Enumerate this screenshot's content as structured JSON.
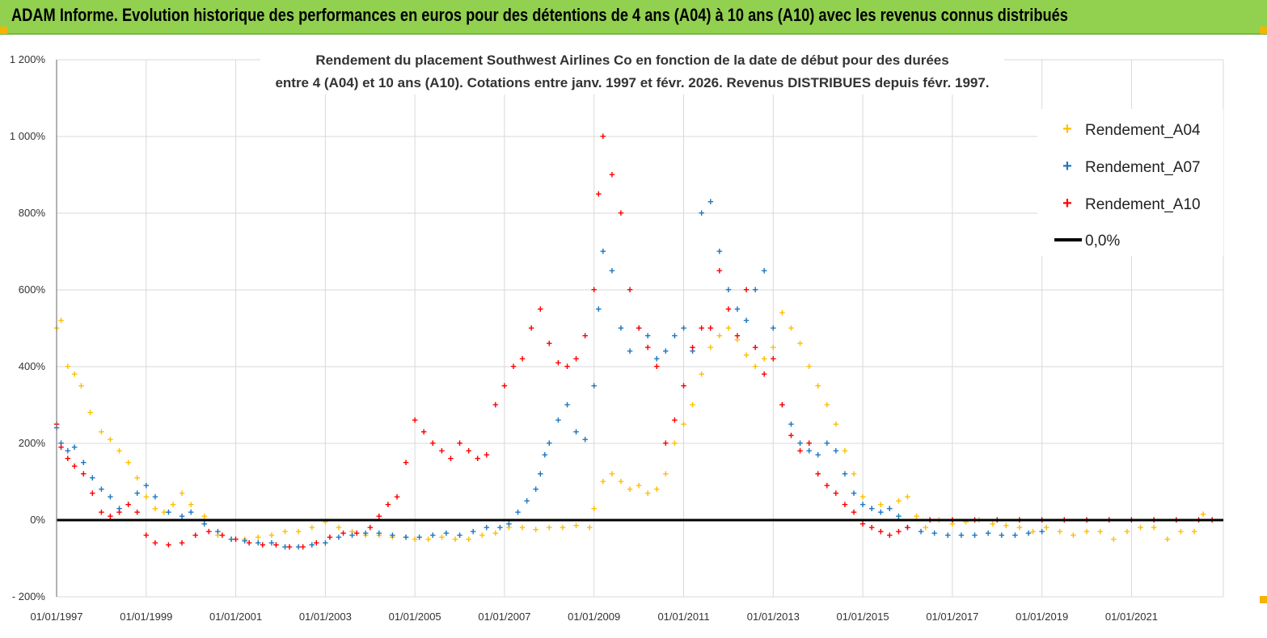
{
  "header": {
    "title": "ADAM Informe. Evolution historique des performances en euros pour des détentions de 4 ans (A04) à 10 ans (A10) avec les revenus connus distribués"
  },
  "colors": {
    "banner": "#92d050",
    "a04": "#ffc000",
    "a07": "#1f77c0",
    "a10": "#ff0000",
    "zero_line": "#000000",
    "grid": "#d9d9d9"
  },
  "chart_data": {
    "type": "scatter",
    "title": "Rendement du placement Southwest Airlines Co en fonction de la date de début pour des durées",
    "subtitle": "entre 4 (A04) et 10 ans (A10). Cotations entre janv. 1997 et févr. 2026. Revenus DISTRIBUES depuis févr. 1997.",
    "xlabel": "",
    "ylabel": "",
    "x_range": [
      "1997-01-01",
      "2023-01-20"
    ],
    "y_range": [
      -200,
      1200
    ],
    "y_ticks": [
      "1 200%",
      "1 000%",
      "800%",
      "600%",
      "400%",
      "200%",
      "0%",
      "- 200%"
    ],
    "y_tick_values": [
      1200,
      1000,
      800,
      600,
      400,
      200,
      0,
      -200
    ],
    "x_ticks": [
      "01/01/1997",
      "01/01/1999",
      "01/01/2001",
      "01/01/2003",
      "01/01/2005",
      "01/01/2007",
      "01/01/2009",
      "01/01/2011",
      "01/01/2013",
      "01/01/2015",
      "01/01/2017",
      "01/01/2019",
      "01/01/2021"
    ],
    "x_tick_years": [
      1997,
      1999,
      2001,
      2003,
      2005,
      2007,
      2009,
      2011,
      2013,
      2015,
      2017,
      2019,
      2021
    ],
    "grid": true,
    "legend_position": "top-right",
    "series": [
      {
        "name": "Rendement_A04",
        "marker": "plus",
        "x": [
          1997.0,
          1997.1,
          1997.25,
          1997.4,
          1997.55,
          1997.75,
          1998.0,
          1998.2,
          1998.4,
          1998.6,
          1998.8,
          1999.0,
          1999.2,
          1999.4,
          1999.6,
          1999.8,
          2000.0,
          2000.3,
          2000.6,
          2000.9,
          2001.2,
          2001.5,
          2001.8,
          2002.1,
          2002.4,
          2002.7,
          2003.0,
          2003.3,
          2003.6,
          2003.9,
          2004.2,
          2004.5,
          2004.8,
          2005.0,
          2005.3,
          2005.6,
          2005.9,
          2006.2,
          2006.5,
          2006.8,
          2007.1,
          2007.4,
          2007.7,
          2008.0,
          2008.3,
          2008.6,
          2008.9,
          2009.0,
          2009.2,
          2009.4,
          2009.6,
          2009.8,
          2010.0,
          2010.2,
          2010.4,
          2010.6,
          2010.8,
          2011.0,
          2011.2,
          2011.4,
          2011.6,
          2011.8,
          2012.0,
          2012.2,
          2012.4,
          2012.6,
          2012.8,
          2013.0,
          2013.2,
          2013.4,
          2013.6,
          2013.8,
          2014.0,
          2014.2,
          2014.4,
          2014.6,
          2014.8,
          2015.0,
          2015.2,
          2015.4,
          2015.6,
          2015.8,
          2016.0,
          2016.2,
          2016.4,
          2016.7,
          2017.0,
          2017.3,
          2017.6,
          2017.9,
          2018.2,
          2018.5,
          2018.8,
          2019.1,
          2019.4,
          2019.7,
          2020.0,
          2020.3,
          2020.6,
          2020.9,
          2021.2,
          2021.5,
          2021.8,
          2022.1,
          2022.4,
          2022.6
        ],
        "y": [
          500,
          520,
          400,
          380,
          350,
          280,
          230,
          210,
          180,
          150,
          110,
          60,
          30,
          20,
          40,
          70,
          40,
          10,
          -40,
          -50,
          -50,
          -45,
          -40,
          -30,
          -30,
          -20,
          -5,
          -20,
          -30,
          -40,
          -40,
          -45,
          -45,
          -50,
          -50,
          -45,
          -50,
          -50,
          -40,
          -35,
          -20,
          -20,
          -25,
          -20,
          -20,
          -15,
          -20,
          30,
          100,
          120,
          100,
          80,
          90,
          70,
          80,
          120,
          200,
          250,
          300,
          380,
          450,
          480,
          500,
          470,
          430,
          400,
          420,
          450,
          540,
          500,
          460,
          400,
          350,
          300,
          250,
          180,
          120,
          60,
          30,
          40,
          30,
          50,
          60,
          10,
          -20,
          0,
          -10,
          -5,
          0,
          -10,
          -15,
          -20,
          -30,
          -20,
          -30,
          -40,
          -30,
          -30,
          -50,
          -30,
          -20,
          -20,
          -50,
          -30,
          -30,
          15
        ]
      },
      {
        "name": "Rendement_A07",
        "marker": "plus",
        "x": [
          1997.0,
          1997.1,
          1997.25,
          1997.4,
          1997.6,
          1997.8,
          1998.0,
          1998.2,
          1998.4,
          1998.6,
          1998.8,
          1999.0,
          1999.2,
          1999.5,
          1999.8,
          2000.0,
          2000.3,
          2000.6,
          2000.9,
          2001.2,
          2001.5,
          2001.8,
          2002.1,
          2002.4,
          2002.7,
          2003.0,
          2003.3,
          2003.6,
          2003.9,
          2004.2,
          2004.5,
          2004.8,
          2005.1,
          2005.4,
          2005.7,
          2006.0,
          2006.3,
          2006.6,
          2006.9,
          2007.1,
          2007.3,
          2007.5,
          2007.7,
          2007.8,
          2007.9,
          2008.0,
          2008.2,
          2008.4,
          2008.6,
          2008.8,
          2009.0,
          2009.1,
          2009.2,
          2009.4,
          2009.6,
          2009.8,
          2010.0,
          2010.2,
          2010.4,
          2010.6,
          2010.8,
          2011.0,
          2011.2,
          2011.4,
          2011.6,
          2011.8,
          2012.0,
          2012.2,
          2012.4,
          2012.6,
          2012.8,
          2013.0,
          2013.2,
          2013.4,
          2013.6,
          2013.8,
          2014.0,
          2014.2,
          2014.4,
          2014.6,
          2014.8,
          2015.0,
          2015.2,
          2015.4,
          2015.6,
          2015.8,
          2016.0,
          2016.3,
          2016.6,
          2016.9,
          2017.2,
          2017.5,
          2017.8,
          2018.1,
          2018.4,
          2018.7,
          2019.0
        ],
        "y": [
          240,
          200,
          180,
          190,
          150,
          110,
          80,
          60,
          30,
          40,
          70,
          90,
          60,
          20,
          10,
          20,
          -10,
          -30,
          -50,
          -55,
          -60,
          -60,
          -70,
          -70,
          -65,
          -60,
          -45,
          -40,
          -35,
          -35,
          -40,
          -45,
          -45,
          -40,
          -35,
          -40,
          -30,
          -20,
          -20,
          -10,
          20,
          50,
          80,
          120,
          170,
          200,
          260,
          300,
          230,
          210,
          350,
          550,
          700,
          650,
          500,
          440,
          500,
          480,
          420,
          440,
          480,
          500,
          440,
          800,
          830,
          700,
          600,
          550,
          520,
          600,
          650,
          500,
          300,
          250,
          200,
          180,
          170,
          200,
          180,
          120,
          70,
          40,
          30,
          20,
          30,
          10,
          -20,
          -30,
          -35,
          -40,
          -40,
          -40,
          -35,
          -40,
          -40,
          -35,
          -30
        ]
      },
      {
        "name": "Rendement_A10",
        "marker": "plus",
        "x": [
          1997.0,
          1997.1,
          1997.25,
          1997.4,
          1997.6,
          1997.8,
          1998.0,
          1998.2,
          1998.4,
          1998.6,
          1998.8,
          1999.0,
          1999.2,
          1999.5,
          1999.8,
          2000.1,
          2000.4,
          2000.7,
          2001.0,
          2001.3,
          2001.6,
          2001.9,
          2002.2,
          2002.5,
          2002.8,
          2003.1,
          2003.4,
          2003.7,
          2004.0,
          2004.2,
          2004.4,
          2004.6,
          2004.8,
          2005.0,
          2005.2,
          2005.4,
          2005.6,
          2005.8,
          2006.0,
          2006.2,
          2006.4,
          2006.6,
          2006.8,
          2007.0,
          2007.2,
          2007.4,
          2007.6,
          2007.8,
          2008.0,
          2008.2,
          2008.4,
          2008.6,
          2008.8,
          2009.0,
          2009.1,
          2009.2,
          2009.4,
          2009.6,
          2009.8,
          2010.0,
          2010.2,
          2010.4,
          2010.6,
          2010.8,
          2011.0,
          2011.2,
          2011.4,
          2011.6,
          2011.8,
          2012.0,
          2012.2,
          2012.4,
          2012.6,
          2012.8,
          2013.0,
          2013.2,
          2013.4,
          2013.6,
          2013.8,
          2014.0,
          2014.2,
          2014.4,
          2014.6,
          2014.8,
          2015.0,
          2015.2,
          2015.4,
          2015.6,
          2015.8,
          2016.0,
          2016.5,
          2017.0,
          2017.5,
          2018.0,
          2018.5,
          2019.0,
          2019.5,
          2020.0,
          2020.5,
          2021.0,
          2021.5,
          2022.0,
          2022.5,
          2022.8
        ],
        "y": [
          250,
          190,
          160,
          140,
          120,
          70,
          20,
          10,
          20,
          40,
          20,
          -40,
          -60,
          -65,
          -60,
          -40,
          -30,
          -40,
          -50,
          -60,
          -65,
          -65,
          -70,
          -70,
          -60,
          -45,
          -35,
          -35,
          -20,
          10,
          40,
          60,
          150,
          260,
          230,
          200,
          180,
          160,
          200,
          180,
          160,
          170,
          300,
          350,
          400,
          420,
          500,
          550,
          460,
          410,
          400,
          420,
          480,
          600,
          850,
          1000,
          900,
          800,
          600,
          500,
          450,
          400,
          200,
          260,
          350,
          450,
          500,
          500,
          650,
          550,
          480,
          600,
          450,
          380,
          420,
          300,
          220,
          180,
          200,
          120,
          90,
          70,
          40,
          20,
          -10,
          -20,
          -30,
          -40,
          -30,
          -20,
          0,
          0,
          0,
          0,
          0,
          0,
          0,
          0,
          0,
          0,
          0,
          0,
          0,
          0
        ]
      }
    ],
    "reference_line": {
      "name": "0,0%",
      "y": 0
    }
  }
}
